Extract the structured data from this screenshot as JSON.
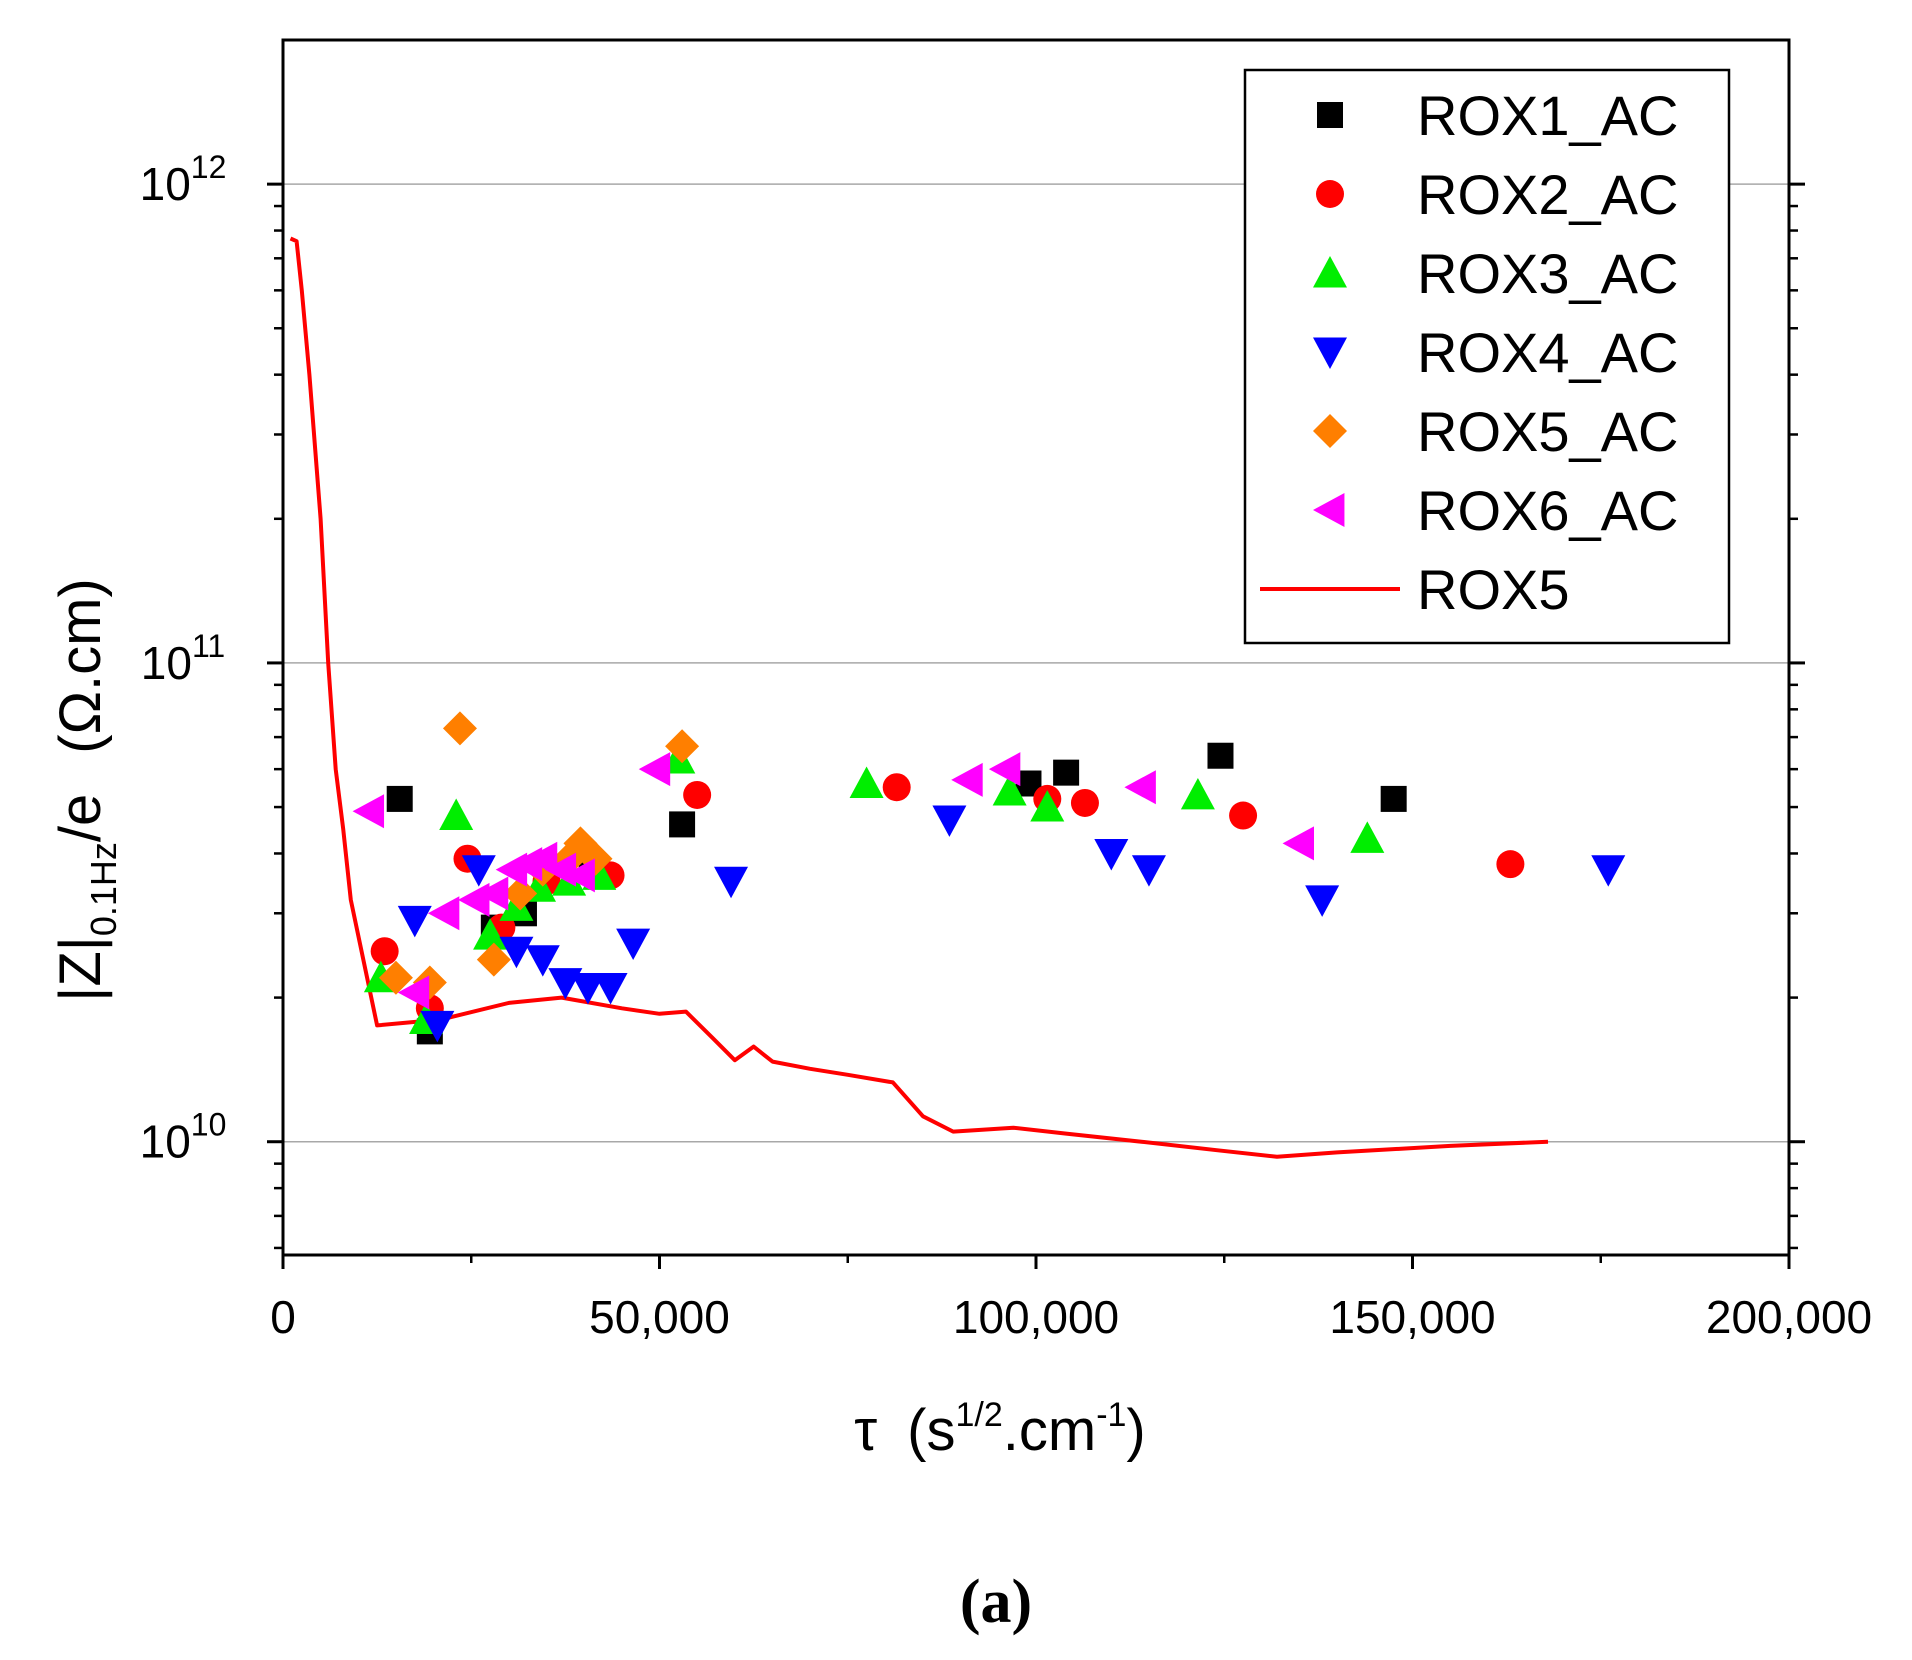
{
  "chart_data": {
    "type": "scatter",
    "x_axis": {
      "label_main": "τ",
      "label_unit_open": "(s",
      "label_unit_sup1": "1/2",
      "label_unit_mid": ".cm",
      "label_unit_sup2": "-1",
      "label_unit_close": ")",
      "range": [
        0,
        200000
      ],
      "scale": "linear",
      "ticks": [
        0,
        50000,
        100000,
        150000,
        200000
      ],
      "tick_labels": [
        "0",
        "50,000",
        "100,000",
        "150,000",
        "200,000"
      ]
    },
    "y_axis": {
      "label_main": "|Z|",
      "label_sub": "0.1Hz",
      "label_rest": "/e",
      "label_unit": "(Ω.cm)",
      "range": [
        5800000000.0,
        2000000000000.0
      ],
      "scale": "log",
      "ticks": [
        10000000000.0,
        100000000000.0,
        1000000000000.0
      ],
      "tick_labels": [
        {
          "base": "10",
          "exp": "10"
        },
        {
          "base": "10",
          "exp": "11"
        },
        {
          "base": "10",
          "exp": "12"
        }
      ]
    },
    "grid": "horizontal major lines at decades",
    "legend_position": "top-right",
    "series": [
      {
        "name": "ROX1_AC",
        "marker": "square",
        "color": "#000000",
        "points": [
          [
            15500,
            52000000000.0
          ],
          [
            19500,
            17000000000.0
          ],
          [
            28000,
            28000000000.0
          ],
          [
            32000,
            30000000000.0
          ],
          [
            41000,
            37000000000.0
          ],
          [
            53000,
            46000000000.0
          ],
          [
            99000,
            56000000000.0
          ],
          [
            104000,
            59000000000.0
          ],
          [
            124500,
            64000000000.0
          ],
          [
            147500,
            52000000000.0
          ]
        ]
      },
      {
        "name": "ROX2_AC",
        "marker": "circle",
        "color": "#ff0000",
        "points": [
          [
            13500,
            25000000000.0
          ],
          [
            19500,
            19000000000.0
          ],
          [
            24500,
            39000000000.0
          ],
          [
            29000,
            28000000000.0
          ],
          [
            35000,
            35000000000.0
          ],
          [
            43500,
            36000000000.0
          ],
          [
            55000,
            53000000000.0
          ],
          [
            81500,
            55000000000.0
          ],
          [
            101500,
            52000000000.0
          ],
          [
            106500,
            51000000000.0
          ],
          [
            127500,
            48000000000.0
          ],
          [
            163000,
            38000000000.0
          ]
        ]
      },
      {
        "name": "ROX3_AC",
        "marker": "triangle-up",
        "color": "#00ee00",
        "points": [
          [
            13000,
            22000000000.0
          ],
          [
            19000,
            18000000000.0
          ],
          [
            23000,
            48000000000.0
          ],
          [
            27500,
            27000000000.0
          ],
          [
            31000,
            31000000000.0
          ],
          [
            34000,
            34000000000.0
          ],
          [
            38000,
            35000000000.0
          ],
          [
            42000,
            36000000000.0
          ],
          [
            52500,
            63000000000.0
          ],
          [
            77500,
            56000000000.0
          ],
          [
            96500,
            54000000000.0
          ],
          [
            101500,
            50000000000.0
          ],
          [
            121500,
            53000000000.0
          ],
          [
            144000,
            43000000000.0
          ]
        ]
      },
      {
        "name": "ROX4_AC",
        "marker": "triangle-down",
        "color": "#0000ff",
        "points": [
          [
            17500,
            29000000000.0
          ],
          [
            20500,
            17500000000.0
          ],
          [
            26000,
            37000000000.0
          ],
          [
            31000,
            25000000000.0
          ],
          [
            34500,
            24000000000.0
          ],
          [
            37500,
            21500000000.0
          ],
          [
            40500,
            21000000000.0
          ],
          [
            43500,
            21000000000.0
          ],
          [
            46500,
            26000000000.0
          ],
          [
            59500,
            35000000000.0
          ],
          [
            88500,
            47000000000.0
          ],
          [
            110000,
            40000000000.0
          ],
          [
            115000,
            37000000000.0
          ],
          [
            138000,
            32000000000.0
          ],
          [
            176000,
            37000000000.0
          ]
        ]
      },
      {
        "name": "ROX5_AC",
        "marker": "diamond",
        "color": "#ff7f00",
        "points": [
          [
            15000,
            22000000000.0
          ],
          [
            19500,
            21500000000.0
          ],
          [
            23500,
            73000000000.0
          ],
          [
            28000,
            24000000000.0
          ],
          [
            31500,
            33000000000.0
          ],
          [
            34500,
            37000000000.0
          ],
          [
            38000,
            39000000000.0
          ],
          [
            39500,
            42000000000.0
          ],
          [
            41500,
            39000000000.0
          ],
          [
            53000,
            67000000000.0
          ]
        ]
      },
      {
        "name": "ROX6_AC",
        "marker": "triangle-left",
        "color": "#ff00ff",
        "points": [
          [
            11500,
            49000000000.0
          ],
          [
            17500,
            20500000000.0
          ],
          [
            21500,
            30000000000.0
          ],
          [
            25500,
            32000000000.0
          ],
          [
            28000,
            33000000000.0
          ],
          [
            30500,
            37000000000.0
          ],
          [
            32500,
            38000000000.0
          ],
          [
            34500,
            39000000000.0
          ],
          [
            37000,
            37000000000.0
          ],
          [
            39500,
            36000000000.0
          ],
          [
            49500,
            60000000000.0
          ],
          [
            91000,
            57000000000.0
          ],
          [
            96000,
            60000000000.0
          ],
          [
            114000,
            55000000000.0
          ],
          [
            135000,
            42000000000.0
          ]
        ]
      },
      {
        "name": "ROX5",
        "marker": "line",
        "color": "#ff0000",
        "points": [
          [
            1000,
            770000000000.0
          ],
          [
            1800,
            760000000000.0
          ],
          [
            2500,
            600000000000.0
          ],
          [
            3500,
            400000000000.0
          ],
          [
            5000,
            200000000000.0
          ],
          [
            6000,
            100000000000.0
          ],
          [
            7000,
            60000000000.0
          ],
          [
            8000,
            45000000000.0
          ],
          [
            9000,
            32000000000.0
          ],
          [
            12500,
            17500000000.0
          ],
          [
            21000,
            18000000000.0
          ],
          [
            30000,
            19500000000.0
          ],
          [
            37000,
            20000000000.0
          ],
          [
            45000,
            19000000000.0
          ],
          [
            50000,
            18500000000.0
          ],
          [
            53500,
            18700000000.0
          ],
          [
            57000,
            16500000000.0
          ],
          [
            60000,
            14800000000.0
          ],
          [
            62500,
            15800000000.0
          ],
          [
            65000,
            14700000000.0
          ],
          [
            70000,
            14200000000.0
          ],
          [
            75000,
            13800000000.0
          ],
          [
            81000,
            13300000000.0
          ],
          [
            85000,
            11300000000.0
          ],
          [
            89000,
            10500000000.0
          ],
          [
            97000,
            10700000000.0
          ],
          [
            104000,
            10400000000.0
          ],
          [
            114000,
            10000000000.0
          ],
          [
            124000,
            9600000000.0
          ],
          [
            132000,
            9300000000.0
          ],
          [
            140000,
            9500000000.0
          ],
          [
            155000,
            9800000000.0
          ],
          [
            168000,
            10000000000.0
          ]
        ]
      }
    ],
    "panel_label": "(a)"
  }
}
